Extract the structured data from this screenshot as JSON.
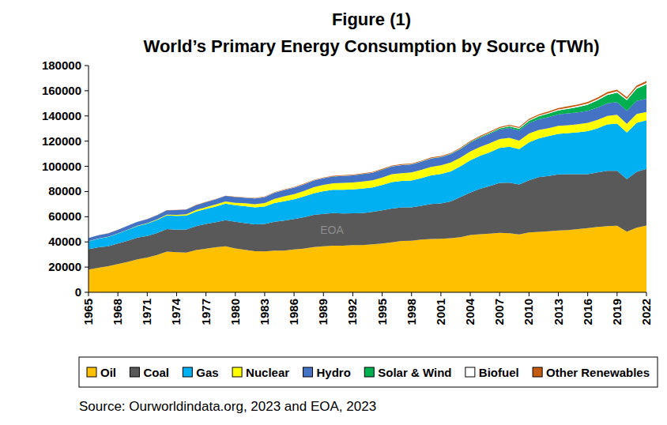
{
  "chart_data": {
    "type": "area",
    "title": "Figure (1)",
    "subtitle": "World’s Primary Energy Consumption by Source (TWh)",
    "source": "Source: Ourworldindata.org, 2023 and EOA, 2023",
    "annotations": [
      "EOA"
    ],
    "stacked": true,
    "grid": false,
    "legend": "bottom",
    "x": [
      1965,
      1966,
      1967,
      1968,
      1969,
      1970,
      1971,
      1972,
      1973,
      1974,
      1975,
      1976,
      1977,
      1978,
      1979,
      1980,
      1981,
      1982,
      1983,
      1984,
      1985,
      1986,
      1987,
      1988,
      1989,
      1990,
      1991,
      1992,
      1993,
      1994,
      1995,
      1996,
      1997,
      1998,
      1999,
      2000,
      2001,
      2002,
      2003,
      2004,
      2005,
      2006,
      2007,
      2008,
      2009,
      2010,
      2011,
      2012,
      2013,
      2014,
      2015,
      2016,
      2017,
      2018,
      2019,
      2020,
      2021,
      2022
    ],
    "xlim": [
      1965,
      2022
    ],
    "xticks": [
      1965,
      1968,
      1971,
      1974,
      1977,
      1980,
      1983,
      1986,
      1989,
      1992,
      1995,
      1998,
      2001,
      2004,
      2007,
      2010,
      2013,
      2016,
      2019,
      2022
    ],
    "ylim": [
      0,
      180000
    ],
    "yticks": [
      0,
      20000,
      40000,
      60000,
      80000,
      100000,
      120000,
      140000,
      160000,
      180000
    ],
    "series": [
      {
        "name": "Oil",
        "color": "#FFC000",
        "values": [
          18100,
          19400,
          20700,
          22400,
          24200,
          26200,
          27600,
          29700,
          32300,
          31800,
          31500,
          33500,
          34600,
          35800,
          36500,
          34800,
          33700,
          32600,
          32400,
          33100,
          33100,
          34000,
          34700,
          35900,
          36500,
          37000,
          37000,
          37400,
          37400,
          38100,
          38800,
          39700,
          40700,
          41000,
          41800,
          42300,
          42500,
          43000,
          43800,
          45400,
          46100,
          46600,
          47200,
          46900,
          46000,
          47500,
          48000,
          48500,
          49100,
          49400,
          50200,
          51000,
          51900,
          52500,
          52800,
          48100,
          51300,
          53000
        ]
      },
      {
        "name": "Coal",
        "color": "#595959",
        "values": [
          16100,
          16300,
          15900,
          16300,
          16800,
          17200,
          17100,
          17400,
          17900,
          17900,
          18300,
          19000,
          19600,
          19900,
          20700,
          21100,
          21200,
          21400,
          21900,
          22900,
          23800,
          24200,
          24900,
          25500,
          25800,
          25800,
          25500,
          25300,
          25500,
          25700,
          26300,
          26800,
          26700,
          26500,
          26900,
          27800,
          28100,
          29100,
          31700,
          33800,
          36000,
          37800,
          39600,
          40100,
          39600,
          41400,
          43400,
          43800,
          44500,
          44400,
          43600,
          42800,
          43300,
          43900,
          43600,
          41800,
          44400,
          45000
        ]
      },
      {
        "name": "Gas",
        "color": "#00B0F0",
        "values": [
          6300,
          6800,
          7300,
          7900,
          8600,
          9200,
          9800,
          10300,
          10800,
          11000,
          11100,
          11700,
          12000,
          12400,
          13200,
          13300,
          13500,
          13500,
          13700,
          14800,
          15400,
          15600,
          16400,
          17200,
          18000,
          18500,
          18900,
          19000,
          19400,
          19400,
          20000,
          21000,
          21000,
          21300,
          21900,
          22800,
          23300,
          23900,
          24600,
          25500,
          26200,
          26800,
          27800,
          28600,
          28000,
          30100,
          30800,
          31700,
          32200,
          32500,
          33200,
          34100,
          35000,
          36800,
          37500,
          37000,
          38900,
          38500
        ]
      },
      {
        "name": "Nuclear",
        "color": "#FFFF00",
        "values": [
          70,
          100,
          120,
          150,
          180,
          220,
          300,
          400,
          550,
          700,
          1000,
          1150,
          1400,
          1600,
          1700,
          1900,
          2250,
          2450,
          2800,
          3350,
          3900,
          4200,
          4500,
          4850,
          5000,
          5200,
          5400,
          5450,
          5650,
          5750,
          6000,
          6200,
          6200,
          6300,
          6550,
          6700,
          6850,
          6950,
          6850,
          7100,
          7100,
          7200,
          7000,
          6950,
          6850,
          7000,
          6700,
          6300,
          6300,
          6400,
          6500,
          6600,
          6650,
          6800,
          7000,
          6800,
          7000,
          6700
        ]
      },
      {
        "name": "Hydro",
        "color": "#4472C4",
        "values": [
          2500,
          2650,
          2750,
          2850,
          3000,
          3100,
          3250,
          3350,
          3450,
          3750,
          3800,
          3850,
          3950,
          4200,
          4350,
          4450,
          4500,
          4600,
          4800,
          4900,
          5000,
          5100,
          5150,
          5300,
          5300,
          5450,
          5600,
          5600,
          5850,
          5900,
          6150,
          6250,
          6350,
          6400,
          6450,
          6600,
          6500,
          6600,
          6650,
          7000,
          7250,
          7500,
          7600,
          7950,
          7950,
          8300,
          8500,
          8850,
          9100,
          9300,
          9300,
          9600,
          9700,
          10000,
          10100,
          10400,
          10300,
          10500
        ]
      },
      {
        "name": "Solar & Wind",
        "color": "#00B050",
        "values": [
          0,
          0,
          0,
          0,
          0,
          0,
          0,
          0,
          0,
          0,
          0,
          0,
          0,
          0,
          0,
          0,
          0,
          0,
          5,
          8,
          10,
          12,
          15,
          18,
          20,
          25,
          30,
          35,
          45,
          55,
          65,
          75,
          90,
          110,
          150,
          180,
          230,
          300,
          370,
          450,
          560,
          700,
          880,
          1150,
          1400,
          1750,
          2250,
          2750,
          3250,
          3700,
          4300,
          4900,
          5800,
          6600,
          7500,
          8400,
          9800,
          11400
        ]
      },
      {
        "name": "Biofuel",
        "color": "#FFFFFF",
        "values": [
          0,
          0,
          0,
          0,
          0,
          0,
          0,
          0,
          0,
          0,
          5,
          10,
          20,
          30,
          40,
          50,
          60,
          70,
          80,
          90,
          100,
          110,
          120,
          110,
          110,
          110,
          120,
          120,
          120,
          130,
          130,
          140,
          150,
          140,
          140,
          130,
          140,
          160,
          190,
          210,
          250,
          320,
          400,
          520,
          580,
          660,
          670,
          680,
          740,
          810,
          840,
          870,
          920,
          1000,
          1050,
          1000,
          1050,
          1100
        ]
      },
      {
        "name": "Other Renewables",
        "color": "#C55A11",
        "values": [
          100,
          105,
          110,
          115,
          120,
          130,
          140,
          150,
          160,
          170,
          180,
          190,
          200,
          210,
          220,
          240,
          260,
          280,
          300,
          320,
          340,
          360,
          380,
          400,
          420,
          450,
          460,
          470,
          480,
          490,
          500,
          510,
          520,
          530,
          540,
          560,
          570,
          600,
          620,
          650,
          690,
          720,
          760,
          800,
          840,
          900,
          950,
          1000,
          1060,
          1120,
          1180,
          1220,
          1270,
          1320,
          1380,
          1420,
          1480,
          1520
        ]
      }
    ]
  }
}
